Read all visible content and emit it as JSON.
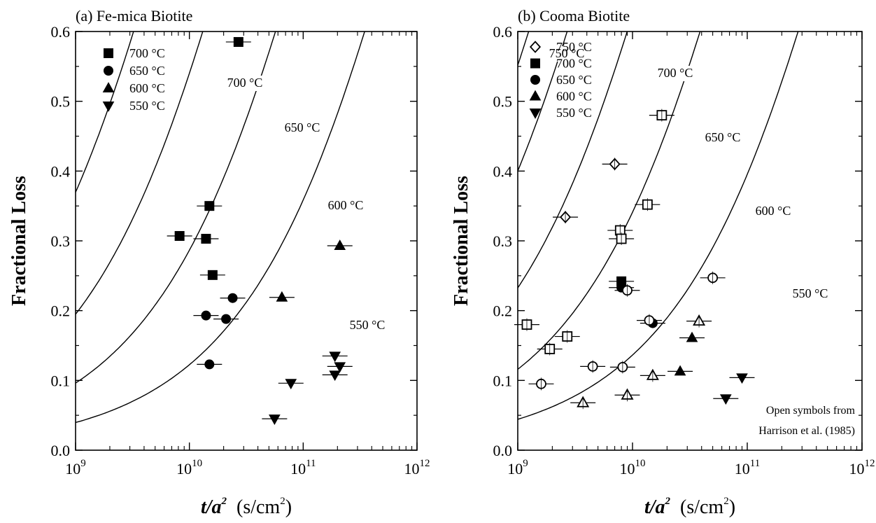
{
  "chart_data": [
    {
      "type": "scatter",
      "title": "(a)  Fe-mica Biotite",
      "xlabel_var": "t/a",
      "xlabel_exp": "2",
      "xlabel_unit_pre": "(s/cm",
      "xlabel_unit_exp": "2",
      "xlabel_unit_post": ")",
      "ylabel": "Fractional Loss",
      "x_scale": "log",
      "xlim": [
        1000000000.0,
        1000000000000.0
      ],
      "ylim": [
        0,
        0.6
      ],
      "x_ticks": [
        {
          "value": 1000000000.0,
          "base": "10",
          "exp": "9"
        },
        {
          "value": 10000000000.0,
          "base": "10",
          "exp": "10"
        },
        {
          "value": 100000000000.0,
          "base": "10",
          "exp": "11"
        },
        {
          "value": 1000000000000.0,
          "base": "10",
          "exp": "12"
        }
      ],
      "y_ticks": [
        "0.0",
        "0.1",
        "0.2",
        "0.3",
        "0.4",
        "0.5",
        "0.6"
      ],
      "legend_position": "top-left",
      "series": [
        {
          "name": "700 °C",
          "marker": "square",
          "fill": "filled",
          "points": [
            [
              27000000000.0,
              0.585
            ],
            [
              15000000000.0,
              0.35
            ],
            [
              8200000000.0,
              0.307
            ],
            [
              14000000000.0,
              0.303
            ],
            [
              16000000000.0,
              0.251
            ]
          ]
        },
        {
          "name": "650 °C",
          "marker": "circle",
          "fill": "filled",
          "points": [
            [
              24000000000.0,
              0.218
            ],
            [
              14000000000.0,
              0.193
            ],
            [
              21000000000.0,
              0.188
            ],
            [
              15000000000.0,
              0.123
            ]
          ]
        },
        {
          "name": "600 °C",
          "marker": "triangle-up",
          "fill": "filled",
          "points": [
            [
              210000000000.0,
              0.293
            ],
            [
              65000000000.0,
              0.219
            ]
          ]
        },
        {
          "name": "550 °C",
          "marker": "triangle-down",
          "fill": "filled",
          "points": [
            [
              190000000000.0,
              0.135
            ],
            [
              210000000000.0,
              0.12
            ],
            [
              190000000000.0,
              0.108
            ],
            [
              78000000000.0,
              0.096
            ],
            [
              56000000000.0,
              0.045
            ]
          ]
        }
      ],
      "curves": [
        {
          "label": "700 °C",
          "d_over_time": 1.5e-11
        },
        {
          "label": "650 °C",
          "d_over_time": 3.7e-12
        },
        {
          "label": "600 °C",
          "d_over_time": 8.5e-13
        },
        {
          "label": "550 °C",
          "d_over_time": 1.4e-13
        }
      ]
    },
    {
      "type": "scatter",
      "title": "(b)  Cooma Biotite",
      "xlabel_var": "t/a",
      "xlabel_exp": "2",
      "xlabel_unit_pre": "(s/cm",
      "xlabel_unit_exp": "2",
      "xlabel_unit_post": ")",
      "ylabel": "Fractional Loss",
      "x_scale": "log",
      "xlim": [
        1000000000.0,
        1000000000000.0
      ],
      "ylim": [
        0,
        0.6
      ],
      "x_ticks": [
        {
          "value": 1000000000.0,
          "base": "10",
          "exp": "9"
        },
        {
          "value": 10000000000.0,
          "base": "10",
          "exp": "10"
        },
        {
          "value": 100000000000.0,
          "base": "10",
          "exp": "11"
        },
        {
          "value": 1000000000000.0,
          "base": "10",
          "exp": "12"
        }
      ],
      "y_ticks": [
        "0.0",
        "0.1",
        "0.2",
        "0.3",
        "0.4",
        "0.5",
        "0.6"
      ],
      "legend_position": "top-left",
      "note_lines": [
        "Open symbols from",
        "Harrison et al. (1985)"
      ],
      "series": [
        {
          "name": "750 °C",
          "marker": "diamond",
          "fill": "open",
          "points": [
            [
              7000000000.0,
              0.41
            ],
            [
              2600000000.0,
              0.334
            ]
          ]
        },
        {
          "name": "700 °C",
          "marker": "square",
          "fill": "filled",
          "points": [
            [
              8000000000.0,
              0.242
            ]
          ]
        },
        {
          "name": "700 °C (open)",
          "marker": "square",
          "fill": "open",
          "points": [
            [
              18000000000.0,
              0.48
            ],
            [
              13500000000.0,
              0.352
            ],
            [
              7800000000.0,
              0.315
            ],
            [
              8000000000.0,
              0.303
            ],
            [
              1200000000.0,
              0.18
            ],
            [
              2700000000.0,
              0.163
            ],
            [
              1900000000.0,
              0.145
            ]
          ]
        },
        {
          "name": "650 °C",
          "marker": "circle",
          "fill": "filled",
          "points": [
            [
              8000000000.0,
              0.233
            ],
            [
              15000000000.0,
              0.182
            ]
          ]
        },
        {
          "name": "650 °C (open)",
          "marker": "circle",
          "fill": "open",
          "points": [
            [
              50000000000.0,
              0.247
            ],
            [
              9000000000.0,
              0.229
            ],
            [
              14000000000.0,
              0.186
            ],
            [
              4500000000.0,
              0.12
            ],
            [
              8200000000.0,
              0.119
            ],
            [
              1600000000.0,
              0.095
            ]
          ]
        },
        {
          "name": "600 °C",
          "marker": "triangle-up",
          "fill": "filled",
          "points": [
            [
              33000000000.0,
              0.161
            ],
            [
              26000000000.0,
              0.113
            ]
          ]
        },
        {
          "name": "600 °C (open)",
          "marker": "triangle-up",
          "fill": "open",
          "points": [
            [
              38000000000.0,
              0.185
            ],
            [
              15000000000.0,
              0.107
            ],
            [
              9000000000.0,
              0.079
            ],
            [
              3700000000.0,
              0.068
            ]
          ]
        },
        {
          "name": "550 °C",
          "marker": "triangle-down",
          "fill": "filled",
          "points": [
            [
              90000000000.0,
              0.104
            ],
            [
              65000000000.0,
              0.074
            ]
          ]
        }
      ],
      "legend_entries": [
        {
          "name": "750 °C",
          "marker": "diamond",
          "fill": "open"
        },
        {
          "name": "700 °C",
          "marker": "square",
          "fill": "filled"
        },
        {
          "name": "650 °C",
          "marker": "circle",
          "fill": "filled"
        },
        {
          "name": "600 °C",
          "marker": "triangle-up",
          "fill": "filled"
        },
        {
          "name": "550 °C",
          "marker": "triangle-down",
          "fill": "filled"
        }
      ],
      "curves": [
        {
          "label": "750 °C",
          "d_over_time": 3.9e-11
        },
        {
          "label": "700 °C",
          "d_over_time": 1.8e-11
        },
        {
          "label": "650 °C",
          "d_over_time": 5.4e-12
        },
        {
          "label": "600 °C",
          "d_over_time": 1.25e-12
        },
        {
          "label": "550 °C",
          "d_over_time": 1.75e-13
        }
      ]
    }
  ]
}
